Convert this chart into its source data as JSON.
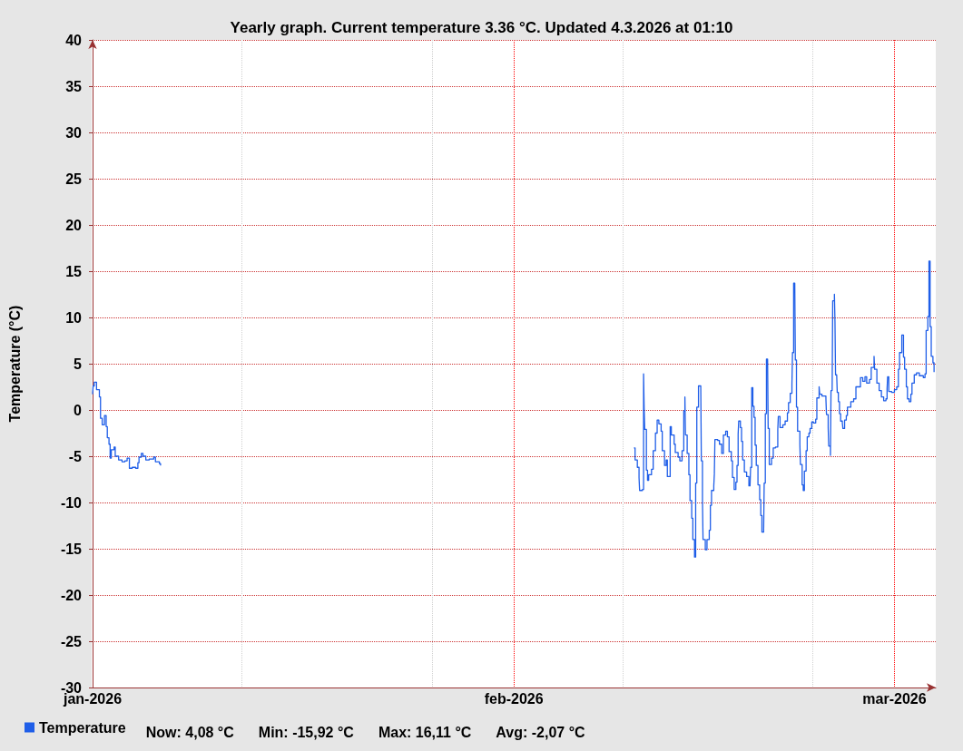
{
  "chart_data": {
    "type": "step",
    "title": "Yearly graph. Current temperature 3.36 °C. Updated 4.3.2026 at 01:10",
    "ylabel": "Temperature (°C)",
    "xlim": [
      "2026-01-01",
      "2026-03-04T01:00"
    ],
    "xticks": [
      {
        "value": "2026-01-01",
        "label": "jan-2026"
      },
      {
        "value": "2026-01-12",
        "label": null
      },
      {
        "value": "2026-01-26",
        "label": null
      },
      {
        "value": "2026-02-01",
        "label": "feb-2026"
      },
      {
        "value": "2026-02-09",
        "label": null
      },
      {
        "value": "2026-02-23",
        "label": null
      },
      {
        "value": "2026-03-01",
        "label": "mar-2026"
      }
    ],
    "ylim": [
      -30,
      40
    ],
    "yticks": [
      -30,
      -25,
      -20,
      -15,
      -10,
      -5,
      0,
      5,
      10,
      15,
      20,
      25,
      30,
      35,
      40
    ],
    "grid": true,
    "legend": "bottom left",
    "marker": "none",
    "annotations": [
      "Now: 4,08 °C",
      "Min: -15,92 °C",
      "Max: 16,11 °C",
      "Avg: -2,07 °C"
    ],
    "x": [
      "2026-01-01T00:00",
      "2026-01-01T01:00",
      "2026-01-01T03:00",
      "2026-01-01T07:00",
      "2026-01-01T12:00",
      "2026-01-01T14:00",
      "2026-01-01T17:00",
      "2026-01-01T21:00",
      "2026-01-02T00:00",
      "2026-01-02T02:00",
      "2026-01-02T05:00",
      "2026-01-02T07:00",
      "2026-01-02T09:00",
      "2026-01-02T14:00",
      "2026-01-02T16:00",
      "2026-01-02T22:00",
      "2026-01-03T04:00",
      "2026-01-03T09:00",
      "2026-01-03T13:00",
      "2026-01-03T17:00",
      "2026-01-03T22:00",
      "2026-01-04T04:00",
      "2026-01-04T08:00",
      "2026-01-04T10:00",
      "2026-01-04T14:00",
      "2026-01-04T17:00",
      "2026-01-04T22:00",
      "2026-01-05T04:00",
      "2026-01-05T12:00",
      "2026-01-05T15:00",
      "2026-01-05T22:00",
      "2026-01-06T00:00",
      "2026-01-06T01:00",
      "2026-02-09T20:00",
      "2026-02-09T22:00",
      "2026-02-10T02:00",
      "2026-02-10T05:00",
      "2026-02-10T06:00",
      "2026-02-10T11:00",
      "2026-02-10T13:00",
      "2026-02-10T14:00",
      "2026-02-10T15:00",
      "2026-02-10T18:00",
      "2026-02-10T20:00",
      "2026-02-10T22:00",
      "2026-02-11T03:00",
      "2026-02-11T06:00",
      "2026-02-11T10:00",
      "2026-02-11T13:00",
      "2026-02-11T16:00",
      "2026-02-11T20:00",
      "2026-02-11T22:00",
      "2026-02-12T02:00",
      "2026-02-12T05:00",
      "2026-02-12T07:00",
      "2026-02-12T10:00",
      "2026-02-12T12:00",
      "2026-02-12T14:00",
      "2026-02-12T19:00",
      "2026-02-12T21:00",
      "2026-02-13T02:00",
      "2026-02-13T05:00",
      "2026-02-13T09:00",
      "2026-02-13T12:00",
      "2026-02-13T14:00",
      "2026-02-13T15:00",
      "2026-02-13T18:00",
      "2026-02-13T21:00",
      "2026-02-13T23:00",
      "2026-02-14T02:00",
      "2026-02-14T04:00",
      "2026-02-14T07:00",
      "2026-02-14T09:00",
      "2026-02-14T11:00",
      "2026-02-14T14:00",
      "2026-02-14T18:00",
      "2026-02-14T19:00",
      "2026-02-14T21:00",
      "2026-02-14T22:00",
      "2026-02-15T02:00",
      "2026-02-15T05:00",
      "2026-02-15T09:00",
      "2026-02-15T11:00",
      "2026-02-15T13:00",
      "2026-02-15T17:00",
      "2026-02-15T18:00",
      "2026-02-15T19:00",
      "2026-02-16T00:00",
      "2026-02-16T03:00",
      "2026-02-16T07:00",
      "2026-02-16T10:00",
      "2026-02-16T14:00",
      "2026-02-16T17:00",
      "2026-02-16T20:00",
      "2026-02-17T00:00",
      "2026-02-17T02:00",
      "2026-02-17T05:00",
      "2026-02-17T08:00",
      "2026-02-17T10:00",
      "2026-02-17T12:00",
      "2026-02-17T13:00",
      "2026-02-17T16:00",
      "2026-02-17T18:00",
      "2026-02-17T20:00",
      "2026-02-17T23:00",
      "2026-02-18T03:00",
      "2026-02-18T07:00",
      "2026-02-18T09:00",
      "2026-02-18T10:00",
      "2026-02-18T12:00",
      "2026-02-18T14:00",
      "2026-02-18T16:00",
      "2026-02-18T18:00",
      "2026-02-18T20:00",
      "2026-02-18T23:00",
      "2026-02-19T02:00",
      "2026-02-19T04:00",
      "2026-02-19T06:00",
      "2026-02-19T09:00",
      "2026-02-19T10:00",
      "2026-02-19T12:00",
      "2026-02-19T14:00",
      "2026-02-19T16:00",
      "2026-02-19T17:00",
      "2026-02-19T19:00",
      "2026-02-19T23:00",
      "2026-02-20T02:00",
      "2026-02-20T06:00",
      "2026-02-20T10:00",
      "2026-02-20T11:00",
      "2026-02-20T14:00",
      "2026-02-20T19:00",
      "2026-02-20T23:00",
      "2026-02-21T03:00",
      "2026-02-21T05:00",
      "2026-02-21T08:00",
      "2026-02-21T11:00",
      "2026-02-21T12:00",
      "2026-02-21T14:00",
      "2026-02-21T16:00",
      "2026-02-21T17:00",
      "2026-02-21T19:00",
      "2026-02-21T21:00",
      "2026-02-22T01:00",
      "2026-02-22T02:00",
      "2026-02-22T05:00",
      "2026-02-22T07:00",
      "2026-02-22T09:00",
      "2026-02-22T12:00",
      "2026-02-22T14:00",
      "2026-02-22T17:00",
      "2026-02-22T19:00",
      "2026-02-22T22:00",
      "2026-02-23T01:00",
      "2026-02-23T05:00",
      "2026-02-23T07:00",
      "2026-02-23T11:00",
      "2026-02-23T12:00",
      "2026-02-23T16:00",
      "2026-02-23T23:00",
      "2026-02-24T00:00",
      "2026-02-24T03:00",
      "2026-02-24T04:00",
      "2026-02-24T07:00",
      "2026-02-24T08:00",
      "2026-02-24T10:00",
      "2026-02-24T11:00",
      "2026-02-24T14:00",
      "2026-02-24T15:00",
      "2026-02-24T16:00",
      "2026-02-24T18:00",
      "2026-02-24T19:00",
      "2026-02-24T21:00",
      "2026-02-24T23:00",
      "2026-02-25T01:00",
      "2026-02-25T04:00",
      "2026-02-25T05:00",
      "2026-02-25T08:00",
      "2026-02-25T11:00",
      "2026-02-25T13:00",
      "2026-02-25T19:00",
      "2026-02-26T00:00",
      "2026-02-26T04:00",
      "2026-02-26T08:00",
      "2026-02-26T12:00",
      "2026-02-26T16:00",
      "2026-02-26T20:00",
      "2026-02-26T23:00",
      "2026-02-27T04:00",
      "2026-02-27T07:00",
      "2026-02-27T12:00",
      "2026-02-27T13:00",
      "2026-02-27T17:00",
      "2026-02-27T21:00",
      "2026-02-28T01:00",
      "2026-02-28T05:00",
      "2026-02-28T09:00",
      "2026-02-28T11:00",
      "2026-02-28T12:00",
      "2026-02-28T14:00",
      "2026-02-28T19:00",
      "2026-03-01T00:00",
      "2026-03-01T04:00",
      "2026-03-01T07:00",
      "2026-03-01T09:00",
      "2026-03-01T13:00",
      "2026-03-01T16:00",
      "2026-03-01T18:00",
      "2026-03-01T21:00",
      "2026-03-01T23:00",
      "2026-03-02T02:00",
      "2026-03-02T05:00",
      "2026-03-02T07:00",
      "2026-03-02T11:00",
      "2026-03-02T15:00",
      "2026-03-02T20:00",
      "2026-03-03T03:00",
      "2026-03-03T06:00",
      "2026-03-03T08:00",
      "2026-03-03T11:00",
      "2026-03-03T13:00",
      "2026-03-03T15:00",
      "2026-03-03T17:00",
      "2026-03-03T20:00",
      "2026-03-03T22:00"
    ],
    "series": [
      {
        "name": "Temperature",
        "color": "#1f5ee8",
        "values": [
          1.7,
          2.6,
          3.0,
          2.2,
          1.4,
          -0.9,
          -1.6,
          -0.6,
          -1.8,
          -3.0,
          -3.7,
          -5.2,
          -4.3,
          -4.0,
          -5.0,
          -5.4,
          -5.6,
          -5.5,
          -5.2,
          -6.3,
          -6.2,
          -6.3,
          -5.7,
          -5.1,
          -4.7,
          -5.0,
          -5.4,
          -5.3,
          -5.1,
          -5.6,
          -5.8,
          -6.0,
          null,
          -4.1,
          -5.4,
          -6.2,
          -7.3,
          -8.7,
          -8.6,
          3.9,
          0.2,
          -2.1,
          -6.5,
          -7.6,
          -7.0,
          -6.4,
          -4.4,
          -2.5,
          -1.1,
          -1.5,
          -2.3,
          -4.4,
          -6.0,
          -5.4,
          -7.2,
          -7.2,
          -1.8,
          -2.7,
          -3.7,
          -4.6,
          -5.1,
          -5.5,
          -4.4,
          -0.1,
          1.4,
          -2.7,
          -4.7,
          -7.0,
          -9.8,
          -11.7,
          -14.0,
          -15.9,
          -7.9,
          0.3,
          2.6,
          2.6,
          -5.5,
          -9.8,
          -14.0,
          -15.1,
          -14.0,
          -13.0,
          -10.3,
          -8.7,
          -8.2,
          -6.9,
          -3.2,
          -3.3,
          -3.7,
          -4.7,
          -2.7,
          -2.3,
          -2.9,
          -4.5,
          -5.5,
          -7.3,
          -8.6,
          -7.8,
          -6.0,
          -2.6,
          -1.2,
          -1.9,
          -3.4,
          -5.4,
          -6.7,
          -7.2,
          -8.2,
          -8.2,
          -6.2,
          2.4,
          0.4,
          -0.8,
          -3.8,
          -6.0,
          -8.1,
          -9.7,
          -11.4,
          -13.2,
          -13.2,
          -7.9,
          -0.4,
          5.5,
          5.5,
          -2.0,
          -5.9,
          -5.2,
          -4.1,
          -4.0,
          -2.1,
          -0.7,
          -1.9,
          -1.6,
          -1.2,
          -0.3,
          0.8,
          1.8,
          2.8,
          6.2,
          13.7,
          13.7,
          5.4,
          0.3,
          -2.3,
          -3.7,
          -5.9,
          -8.1,
          -8.7,
          -6.6,
          -4.4,
          -2.9,
          -2.5,
          -2.0,
          -1.3,
          -1.4,
          -1.0,
          1.3,
          2.5,
          1.7,
          1.5,
          1.2,
          -0.5,
          -1.9,
          -3.9,
          -4.9,
          2.1,
          2.1,
          11.8,
          12.5,
          9.5,
          3.8,
          3.8,
          1.9,
          0.9,
          -0.4,
          -1.2,
          -1.4,
          -2.0,
          -1.1,
          -0.6,
          0.3,
          0.9,
          1.2,
          2.5,
          2.5,
          3.5,
          3.1,
          3.6,
          2.9,
          3.3,
          4.6,
          5.8,
          4.4,
          2.9,
          2.1,
          1.4,
          1.0,
          1.2,
          2.3,
          3.6,
          2.0,
          1.9,
          2.2,
          2.5,
          4.4,
          6.2,
          8.1,
          5.7,
          4.4,
          2.5,
          1.2,
          0.9,
          1.7,
          2.9,
          3.8,
          4.0,
          3.7,
          3.5,
          3.9,
          8.6,
          10.1,
          16.1,
          9.0,
          5.8,
          5.1,
          4.1
        ]
      }
    ]
  }
}
